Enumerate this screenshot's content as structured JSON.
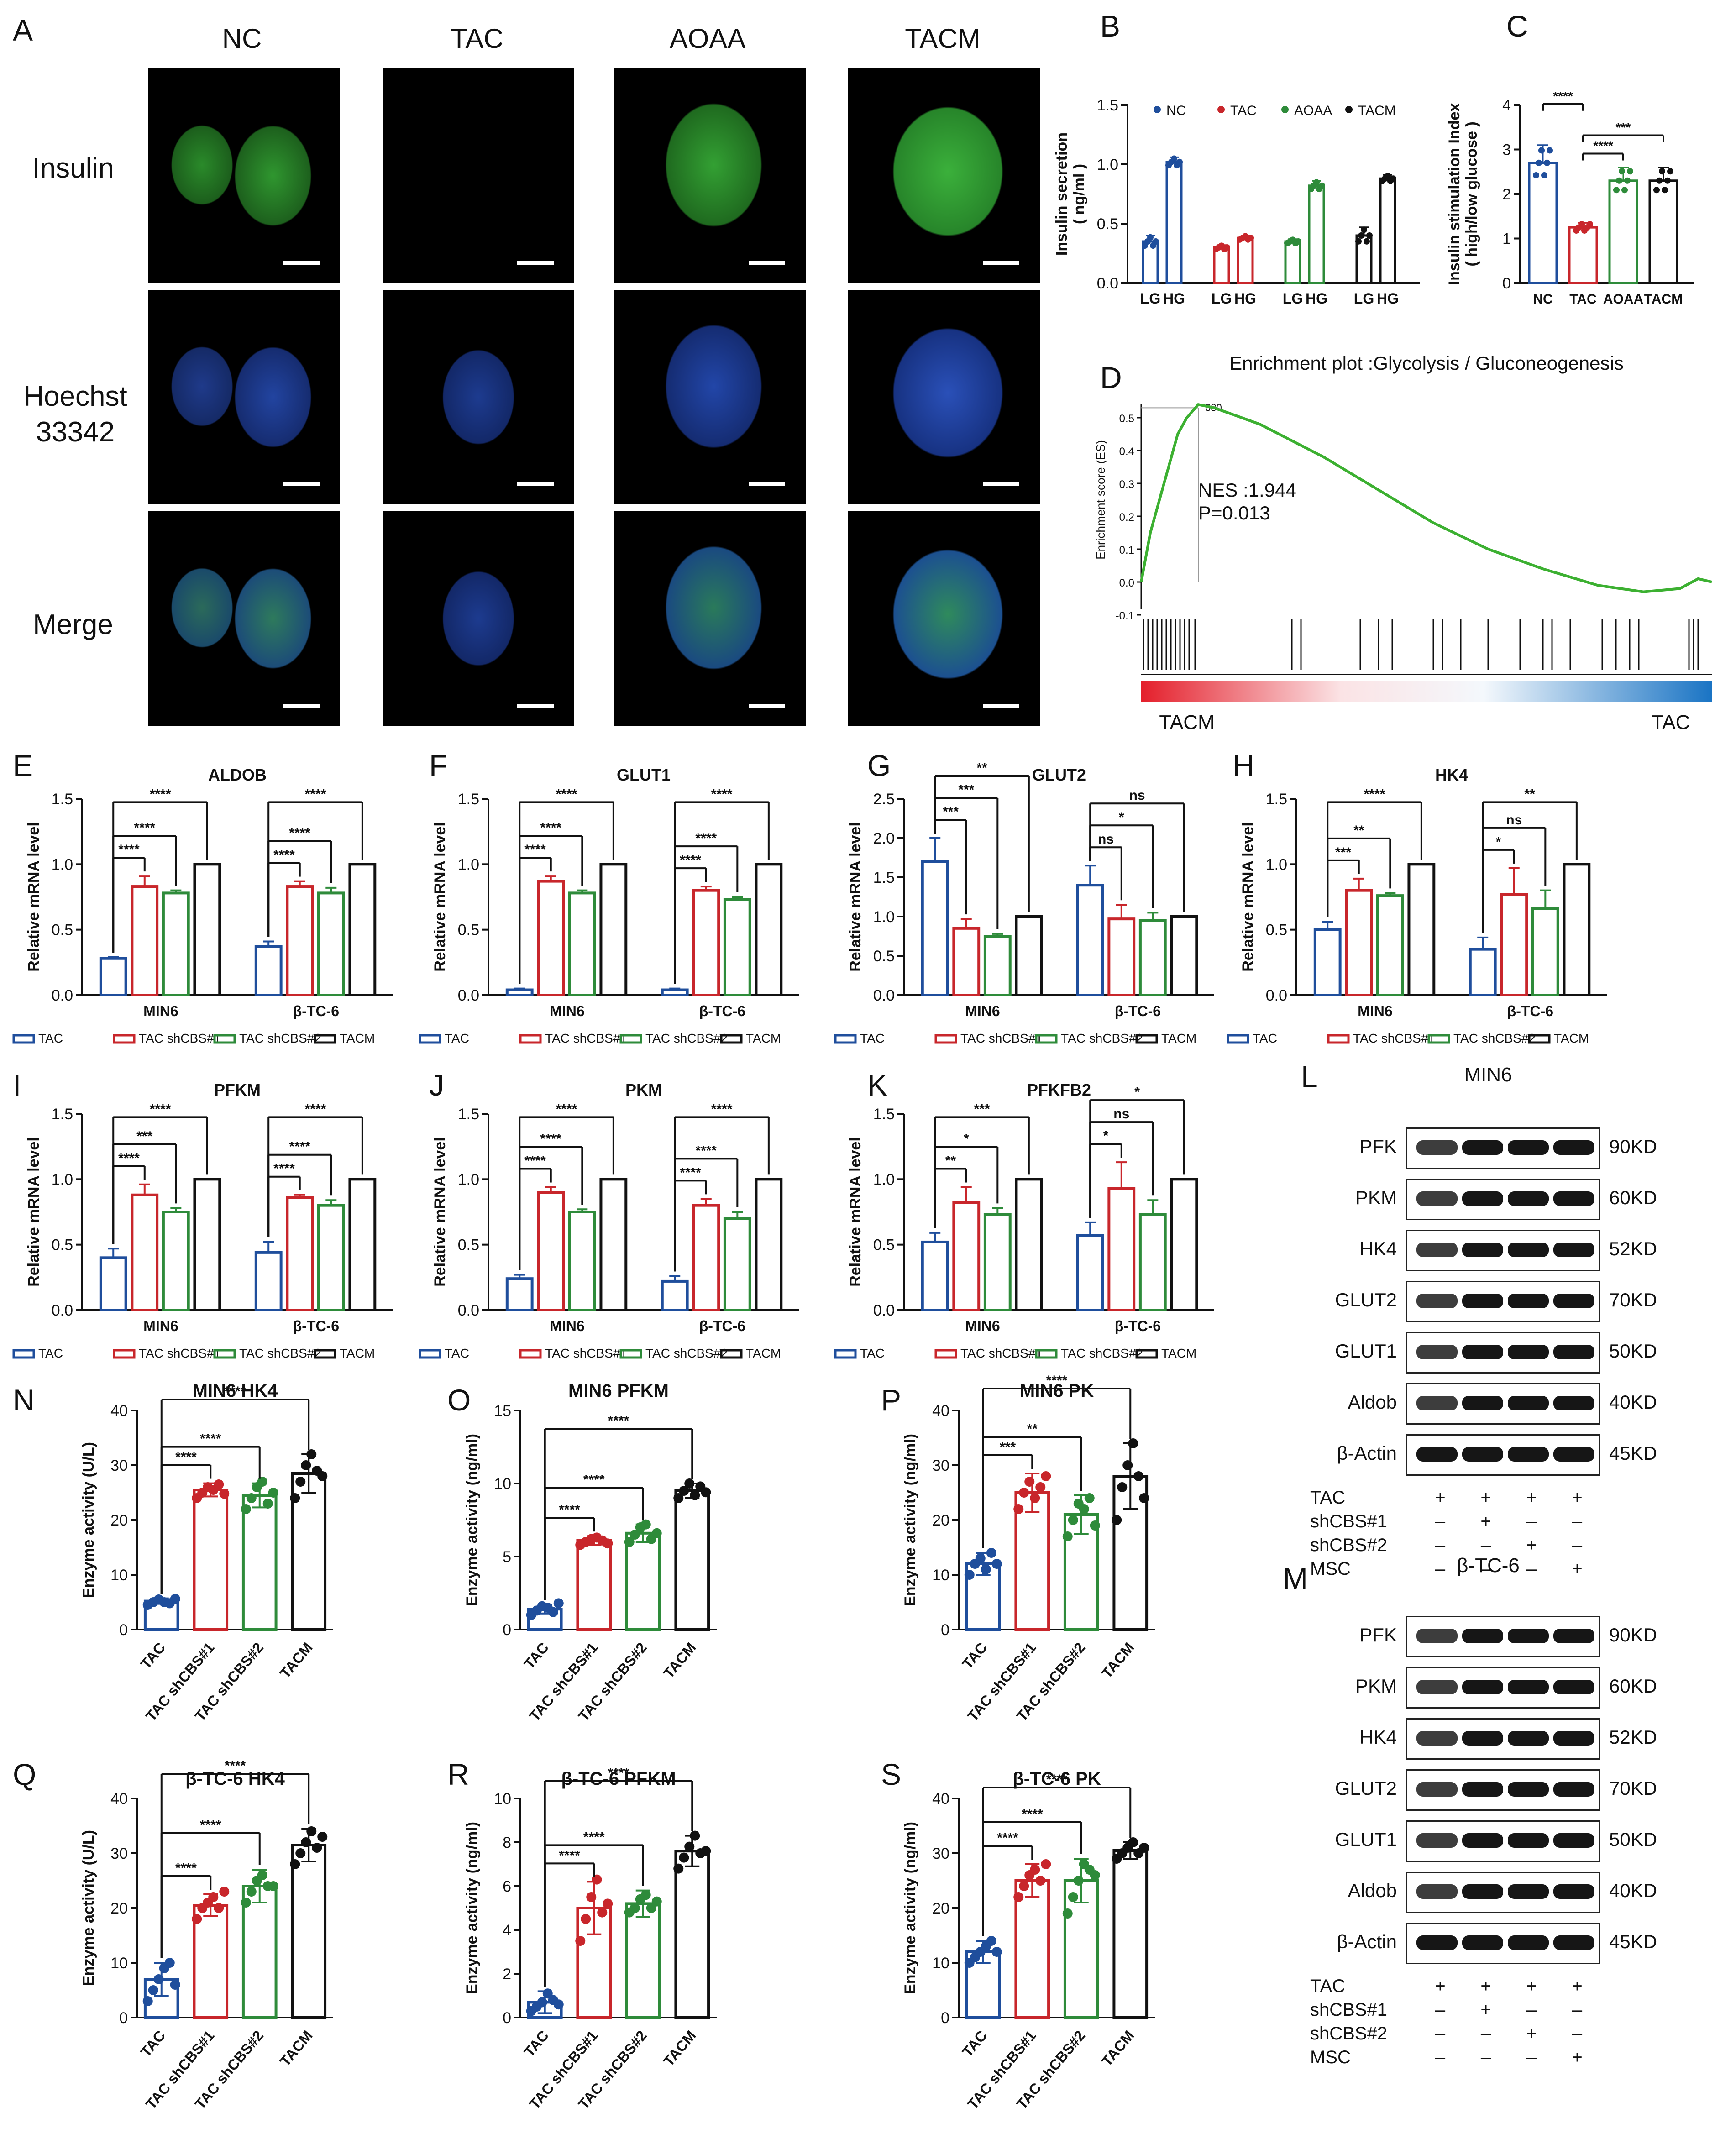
{
  "figure": {
    "panel_a": {
      "letter": "A",
      "columns": [
        "NC",
        "TAC",
        "AOAA",
        "TACM"
      ],
      "rows": [
        "Insulin",
        "Hoechst\n33342",
        "Merge"
      ]
    },
    "panel_d": {
      "letter": "D",
      "title": "Enrichment plot :Glycolysis / Gluconeogenesis",
      "ylabel": "Enrichment score (ES)",
      "nes": "NES :1.944",
      "p": "P=0.013",
      "peak": "680",
      "left_label": "TACM",
      "right_label": "TAC",
      "yticks": [
        "0.5",
        "0.4",
        "0.3",
        "0.2",
        "0.1",
        "0.0",
        "-0.1"
      ]
    },
    "panel_l": {
      "letter": "L",
      "title": "MIN6",
      "bands": [
        "PFK",
        "PKM",
        "HK4",
        "GLUT2",
        "GLUT1",
        "Aldob",
        "β-Actin"
      ],
      "kd": [
        "90KD",
        "60KD",
        "52KD",
        "70KD",
        "50KD",
        "40KD",
        "45KD"
      ],
      "conditions": [
        "TAC",
        "shCBS#1",
        "shCBS#2",
        "MSC"
      ],
      "signs": [
        [
          "+",
          "+",
          "+",
          "+"
        ],
        [
          "–",
          "+",
          "–",
          "–"
        ],
        [
          "–",
          "–",
          "+",
          "–"
        ],
        [
          "–",
          "–",
          "–",
          "+"
        ]
      ]
    },
    "panel_m": {
      "letter": "M",
      "title": "β-TC-6",
      "bands": [
        "PFK",
        "PKM",
        "HK4",
        "GLUT2",
        "GLUT1",
        "Aldob",
        "β-Actin"
      ],
      "kd": [
        "90KD",
        "60KD",
        "52KD",
        "70KD",
        "50KD",
        "40KD",
        "45KD"
      ],
      "conditions": [
        "TAC",
        "shCBS#1",
        "shCBS#2",
        "MSC"
      ],
      "signs": [
        [
          "+",
          "+",
          "+",
          "+"
        ],
        [
          "–",
          "+",
          "–",
          "–"
        ],
        [
          "–",
          "–",
          "+",
          "–"
        ],
        [
          "–",
          "–",
          "–",
          "+"
        ]
      ]
    }
  },
  "colors": {
    "blue": "#1f4e9c",
    "red": "#c8262b",
    "green": "#2e8b3a",
    "black": "#111111"
  },
  "chart_data": [
    {
      "id": "B",
      "type": "bar",
      "ylabel": "Insulin secretion\n( ng/ml )",
      "ylim": [
        0,
        1.5
      ],
      "yticks": [
        0,
        0.5,
        1.0,
        1.5
      ],
      "legend": [
        "NC",
        "TAC",
        "AOAA",
        "TACM"
      ],
      "categories": [
        "LG",
        "HG",
        "LG",
        "HG",
        "LG",
        "HG",
        "LG",
        "HG"
      ],
      "values": [
        0.35,
        1.02,
        0.3,
        0.38,
        0.35,
        0.82,
        0.4,
        0.88
      ],
      "errors": [
        0.05,
        0.04,
        0.02,
        0.02,
        0.02,
        0.04,
        0.07,
        0.03
      ],
      "series_index": [
        0,
        0,
        1,
        1,
        2,
        2,
        3,
        3
      ]
    },
    {
      "id": "C",
      "type": "bar",
      "ylabel": "Insulin stimulation Index\n( high/low glucose )",
      "ylim": [
        0,
        4
      ],
      "yticks": [
        0,
        1,
        2,
        3,
        4
      ],
      "categories": [
        "NC",
        "TAC",
        "AOAA",
        "TACM"
      ],
      "values": [
        2.7,
        1.25,
        2.3,
        2.3
      ],
      "errors": [
        0.4,
        0.1,
        0.3,
        0.3
      ],
      "sig": [
        {
          "from": 0,
          "to": 1,
          "label": "****"
        },
        {
          "from": 1,
          "to": 2,
          "label": "****"
        },
        {
          "from": 1,
          "to": 3,
          "label": "***"
        }
      ]
    },
    {
      "id": "E",
      "type": "bar",
      "title": "ALDOB",
      "ylabel": "Relative mRNA level",
      "ylim": [
        0,
        1.5
      ],
      "yticks": [
        0,
        0.5,
        1.0,
        1.5
      ],
      "groups": [
        "MIN6",
        "β-TC-6"
      ],
      "series": [
        "TAC",
        "TAC shCBS#1",
        "TAC shCBS#2",
        "TACM"
      ],
      "values": [
        [
          0.28,
          0.83,
          0.78,
          1.0
        ],
        [
          0.37,
          0.83,
          0.78,
          1.0
        ]
      ],
      "errors": [
        [
          0.01,
          0.08,
          0.02,
          0
        ],
        [
          0.04,
          0.04,
          0.04,
          0
        ]
      ],
      "sig": [
        [
          "****",
          "****",
          "****"
        ],
        [
          "****",
          "****",
          "****"
        ]
      ]
    },
    {
      "id": "F",
      "type": "bar",
      "title": "GLUT1",
      "ylabel": "Relative mRNA level",
      "ylim": [
        0,
        1.5
      ],
      "yticks": [
        0,
        0.5,
        1.0,
        1.5
      ],
      "groups": [
        "MIN6",
        "β-TC-6"
      ],
      "series": [
        "TAC",
        "TAC shCBS#1",
        "TAC shCBS#2",
        "TACM"
      ],
      "values": [
        [
          0.04,
          0.87,
          0.78,
          1.0
        ],
        [
          0.04,
          0.8,
          0.73,
          1.0
        ]
      ],
      "errors": [
        [
          0.01,
          0.04,
          0.02,
          0
        ],
        [
          0.01,
          0.03,
          0.02,
          0
        ]
      ],
      "sig": [
        [
          "****",
          "****",
          "****"
        ],
        [
          "****",
          "****",
          "****"
        ]
      ]
    },
    {
      "id": "G",
      "type": "bar",
      "title": "GLUT2",
      "ylabel": "Relative mRNA level",
      "ylim": [
        0,
        2.5
      ],
      "yticks": [
        0,
        0.5,
        1.0,
        1.5,
        2.0,
        2.5
      ],
      "groups": [
        "MIN6",
        "β-TC-6"
      ],
      "series": [
        "TAC",
        "TAC shCBS#1",
        "TAC shCBS#2",
        "TACM"
      ],
      "values": [
        [
          1.7,
          0.85,
          0.75,
          1.0
        ],
        [
          1.4,
          0.97,
          0.95,
          1.0
        ]
      ],
      "errors": [
        [
          0.3,
          0.12,
          0.03,
          0
        ],
        [
          0.25,
          0.18,
          0.1,
          0
        ]
      ],
      "sig": [
        [
          "***",
          "***",
          "**"
        ],
        [
          "ns",
          "*",
          "ns"
        ]
      ]
    },
    {
      "id": "H",
      "type": "bar",
      "title": "HK4",
      "ylabel": "Relative mRNA level",
      "ylim": [
        0,
        1.5
      ],
      "yticks": [
        0,
        0.5,
        1.0,
        1.5
      ],
      "groups": [
        "MIN6",
        "β-TC-6"
      ],
      "series": [
        "TAC",
        "TAC shCBS#1",
        "TAC shCBS#2",
        "TACM"
      ],
      "values": [
        [
          0.5,
          0.8,
          0.76,
          1.0
        ],
        [
          0.35,
          0.77,
          0.66,
          1.0
        ]
      ],
      "errors": [
        [
          0.06,
          0.09,
          0.02,
          0
        ],
        [
          0.09,
          0.2,
          0.14,
          0
        ]
      ],
      "sig": [
        [
          "***",
          "**",
          "****"
        ],
        [
          "*",
          "ns",
          "**"
        ]
      ]
    },
    {
      "id": "I",
      "type": "bar",
      "title": "PFKM",
      "ylabel": "Relative mRNA level",
      "ylim": [
        0,
        1.5
      ],
      "yticks": [
        0,
        0.5,
        1.0,
        1.5
      ],
      "groups": [
        "MIN6",
        "β-TC-6"
      ],
      "series": [
        "TAC",
        "TAC shCBS#1",
        "TAC shCBS#2",
        "TACM"
      ],
      "values": [
        [
          0.4,
          0.88,
          0.75,
          1.0
        ],
        [
          0.44,
          0.86,
          0.8,
          1.0
        ]
      ],
      "errors": [
        [
          0.07,
          0.08,
          0.03,
          0
        ],
        [
          0.08,
          0.02,
          0.04,
          0
        ]
      ],
      "sig": [
        [
          "****",
          "***",
          "****"
        ],
        [
          "****",
          "****",
          "****"
        ]
      ]
    },
    {
      "id": "J",
      "type": "bar",
      "title": "PKM",
      "ylabel": "Relative mRNA level",
      "ylim": [
        0,
        1.5
      ],
      "yticks": [
        0,
        0.5,
        1.0,
        1.5
      ],
      "groups": [
        "MIN6",
        "β-TC-6"
      ],
      "series": [
        "TAC",
        "TAC shCBS#1",
        "TAC shCBS#2",
        "TACM"
      ],
      "values": [
        [
          0.24,
          0.9,
          0.75,
          1.0
        ],
        [
          0.22,
          0.8,
          0.7,
          1.0
        ]
      ],
      "errors": [
        [
          0.03,
          0.04,
          0.02,
          0
        ],
        [
          0.04,
          0.05,
          0.05,
          0
        ]
      ],
      "sig": [
        [
          "****",
          "****",
          "****"
        ],
        [
          "****",
          "****",
          "****"
        ]
      ]
    },
    {
      "id": "K",
      "type": "bar",
      "title": "PFKFB2",
      "ylabel": "Relative mRNA level",
      "ylim": [
        0,
        1.5
      ],
      "yticks": [
        0,
        0.5,
        1.0,
        1.5
      ],
      "groups": [
        "MIN6",
        "β-TC-6"
      ],
      "series": [
        "TAC",
        "TAC shCBS#1",
        "TAC shCBS#2",
        "TACM"
      ],
      "values": [
        [
          0.52,
          0.82,
          0.73,
          1.0
        ],
        [
          0.57,
          0.93,
          0.73,
          1.0
        ]
      ],
      "errors": [
        [
          0.07,
          0.12,
          0.05,
          0
        ],
        [
          0.1,
          0.2,
          0.11,
          0
        ]
      ],
      "sig": [
        [
          "**",
          "*",
          "***"
        ],
        [
          "*",
          "ns",
          "*"
        ]
      ]
    },
    {
      "id": "N",
      "type": "scatter_bar",
      "title": "MIN6 HK4",
      "ylabel": "Enzyme activity (U/L)",
      "ylim": [
        0,
        40
      ],
      "yticks": [
        0,
        10,
        20,
        30,
        40
      ],
      "categories": [
        "TAC",
        "TAC shCBS#1",
        "TAC shCBS#2",
        "TACM"
      ],
      "values": [
        5.2,
        25.5,
        24.5,
        28.5
      ],
      "errors": [
        0.5,
        1.2,
        2.2,
        3.5
      ],
      "points": [
        [
          4.5,
          5,
          5.5,
          5,
          4.8,
          5.6
        ],
        [
          24,
          25,
          26,
          25.5,
          26.5,
          24.8
        ],
        [
          22,
          24,
          26,
          27,
          23,
          25
        ],
        [
          24,
          27,
          30,
          32,
          29,
          28
        ]
      ],
      "sig": [
        "****",
        "****",
        "****"
      ]
    },
    {
      "id": "O",
      "type": "scatter_bar",
      "title": "MIN6 PFKM",
      "ylabel": "Enzyme activity (ng/ml)",
      "ylim": [
        0,
        15
      ],
      "yticks": [
        0,
        5,
        10,
        15
      ],
      "categories": [
        "TAC",
        "TAC shCBS#1",
        "TAC shCBS#2",
        "TACM"
      ],
      "values": [
        1.4,
        6.1,
        6.6,
        9.5
      ],
      "errors": [
        0.3,
        0.3,
        0.6,
        0.5
      ],
      "points": [
        [
          1,
          1.3,
          1.6,
          1.5,
          1.2,
          1.8
        ],
        [
          5.8,
          6,
          6.2,
          6.3,
          6.1,
          5.9
        ],
        [
          6,
          6.5,
          7,
          7.2,
          6.2,
          6.6
        ],
        [
          9,
          9.5,
          10,
          9.2,
          9.8,
          9.4
        ]
      ],
      "sig": [
        "****",
        "****",
        "****"
      ]
    },
    {
      "id": "P",
      "type": "scatter_bar",
      "title": "MIN6 PK",
      "ylabel": "Enzyme activity (ng/ml)",
      "ylim": [
        0,
        40
      ],
      "yticks": [
        0,
        10,
        20,
        30,
        40
      ],
      "categories": [
        "TAC",
        "TAC shCBS#1",
        "TAC shCBS#2",
        "TACM"
      ],
      "values": [
        12,
        25,
        21,
        28
      ],
      "errors": [
        2,
        3.5,
        3.5,
        6
      ],
      "points": [
        [
          10,
          12,
          13,
          11,
          14,
          12
        ],
        [
          22,
          25,
          27,
          24,
          26,
          28
        ],
        [
          17,
          20,
          23,
          22,
          24,
          19
        ],
        [
          20,
          26,
          30,
          34,
          28,
          24
        ]
      ],
      "sig": [
        "***",
        "**",
        "****"
      ]
    },
    {
      "id": "Q",
      "type": "scatter_bar",
      "title": "β-TC-6 HK4",
      "ylabel": "Enzyme activity (U/L)",
      "ylim": [
        0,
        40
      ],
      "yticks": [
        0,
        10,
        20,
        30,
        40
      ],
      "categories": [
        "TAC",
        "TAC shCBS#1",
        "TAC shCBS#2",
        "TACM"
      ],
      "values": [
        7,
        20.5,
        24,
        31.5
      ],
      "errors": [
        3,
        2,
        3,
        3
      ],
      "points": [
        [
          3,
          5,
          7,
          9,
          10,
          6
        ],
        [
          18,
          20,
          21,
          22,
          20,
          23
        ],
        [
          21,
          23,
          25,
          26,
          24,
          24
        ],
        [
          28,
          30,
          32,
          34,
          31,
          33
        ]
      ],
      "sig": [
        "****",
        "****",
        "****"
      ]
    },
    {
      "id": "R",
      "type": "scatter_bar",
      "title": "β-TC-6 PFKM",
      "ylabel": "Enzyme activity (ng/ml)",
      "ylim": [
        0,
        10
      ],
      "yticks": [
        0,
        2,
        4,
        6,
        8,
        10
      ],
      "categories": [
        "TAC",
        "TAC shCBS#1",
        "TAC shCBS#2",
        "TACM"
      ],
      "values": [
        0.7,
        5,
        5.2,
        7.6
      ],
      "errors": [
        0.5,
        1.2,
        0.6,
        0.7
      ],
      "points": [
        [
          0.3,
          0.5,
          0.7,
          1.1,
          0.8,
          0.6
        ],
        [
          3.5,
          4.5,
          5.5,
          6.3,
          4.8,
          5.2
        ],
        [
          4.8,
          5,
          5.4,
          5.6,
          5,
          5.3
        ],
        [
          6.8,
          7.3,
          7.8,
          8.3,
          7.5,
          7.6
        ]
      ],
      "sig": [
        "****",
        "****",
        "****"
      ]
    },
    {
      "id": "S",
      "type": "scatter_bar",
      "title": "β-TC-6 PK",
      "ylabel": "Enzyme activity (ng/ml)",
      "ylim": [
        0,
        40
      ],
      "yticks": [
        0,
        10,
        20,
        30,
        40
      ],
      "categories": [
        "TAC",
        "TAC shCBS#1",
        "TAC shCBS#2",
        "TACM"
      ],
      "values": [
        12,
        25,
        25,
        30.5
      ],
      "errors": [
        2,
        3,
        4,
        1.5
      ],
      "points": [
        [
          10,
          11,
          12,
          13,
          14,
          12
        ],
        [
          22,
          24,
          26,
          27,
          25,
          28
        ],
        [
          19,
          22,
          25,
          28,
          27,
          26
        ],
        [
          29,
          30,
          31,
          32,
          30,
          31
        ]
      ],
      "sig": [
        "****",
        "****",
        "****"
      ]
    }
  ]
}
